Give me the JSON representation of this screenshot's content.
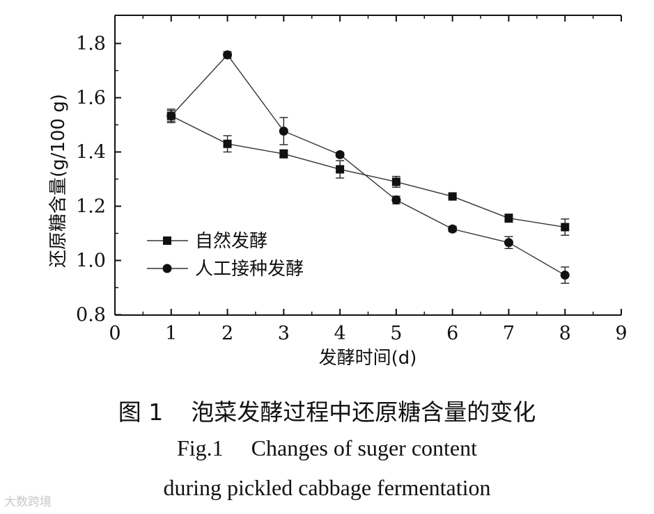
{
  "chart_data": {
    "type": "line",
    "title": "",
    "xlabel": "发酵时间(d)",
    "ylabel": "还原糖含量(g/100 g)",
    "xlim": [
      0,
      9
    ],
    "ylim": [
      0.8,
      1.9
    ],
    "x_ticks": [
      "0",
      "1",
      "2",
      "3",
      "4",
      "5",
      "6",
      "7",
      "8",
      "9"
    ],
    "y_ticks": [
      "0.8",
      "1.0",
      "1.2",
      "1.4",
      "1.6",
      "1.8"
    ],
    "grid": false,
    "legend_position": "center-left",
    "series": [
      {
        "name": "自然发酵",
        "marker": "square",
        "x": [
          1,
          2,
          3,
          4,
          5,
          6,
          7,
          8
        ],
        "values": [
          1.533,
          1.43,
          1.393,
          1.336,
          1.29,
          1.236,
          1.156,
          1.123
        ],
        "error": [
          0.025,
          0.03,
          0.015,
          0.032,
          0.02,
          0.008,
          0.015,
          0.03
        ]
      },
      {
        "name": "人工接种发酵",
        "marker": "circle",
        "x": [
          1,
          2,
          3,
          4,
          5,
          6,
          7,
          8
        ],
        "values": [
          1.533,
          1.758,
          1.477,
          1.39,
          1.223,
          1.116,
          1.066,
          0.946
        ],
        "error": [
          0.02,
          0.012,
          0.05,
          0.008,
          0.014,
          0.01,
          0.022,
          0.03
        ]
      }
    ]
  },
  "caption": {
    "zh_label": "图 1",
    "zh_text": "泡菜发酵过程中还原糖含量的变化",
    "en_label": "Fig.1",
    "en_line1": "Changes of suger content",
    "en_line2": "during pickled cabbage fermentation"
  },
  "watermark": "大数跨境"
}
